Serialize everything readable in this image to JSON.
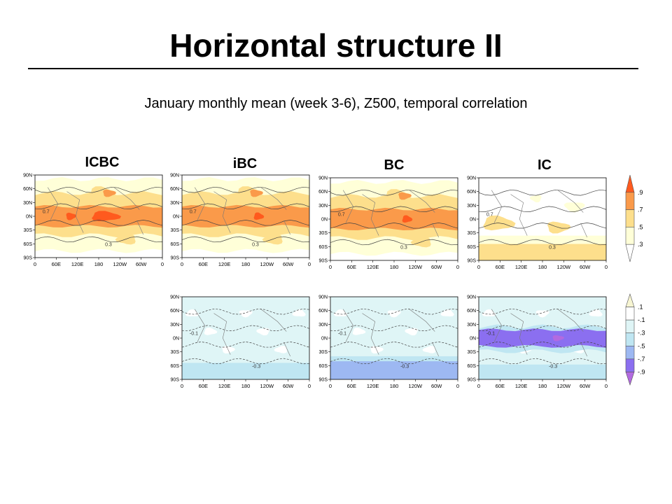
{
  "slide": {
    "title": "Horizontal structure II",
    "subtitle": "January monthly mean (week 3-6), Z500, temporal correlation"
  },
  "columns": [
    {
      "key": "icbc",
      "label": "ICBC"
    },
    {
      "key": "ibc",
      "label": "iBC"
    },
    {
      "key": "bc",
      "label": "BC"
    },
    {
      "key": "ic",
      "label": "IC"
    }
  ],
  "axes": {
    "lat_ticks": [
      "90N",
      "60N",
      "30N",
      "0N",
      "30S",
      "60S",
      "90S"
    ],
    "lon_ticks": [
      "0",
      "60E",
      "120E",
      "180",
      "120W",
      "60W",
      "0"
    ]
  },
  "colorbars": {
    "positive": {
      "labels": [
        ".9",
        ".7",
        ".5",
        ".3"
      ],
      "colors": [
        "#ff5a1e",
        "#fa9a4a",
        "#fddf8c",
        "#ffffd8",
        "#ffffff"
      ]
    },
    "negative": {
      "labels": [
        ".1",
        "-.1",
        "-.3",
        "-.5",
        "-.7",
        "-.9"
      ],
      "colors": [
        "#f7f5d2",
        "#ffffff",
        "#dff5f6",
        "#bfe6f2",
        "#9db8f2",
        "#8b6ff0",
        "#b36ae0"
      ]
    }
  },
  "contour_labels": {
    "positive": [
      "0.7",
      "0.3"
    ],
    "negative": [
      "-0.1",
      "-0.3"
    ]
  }
}
